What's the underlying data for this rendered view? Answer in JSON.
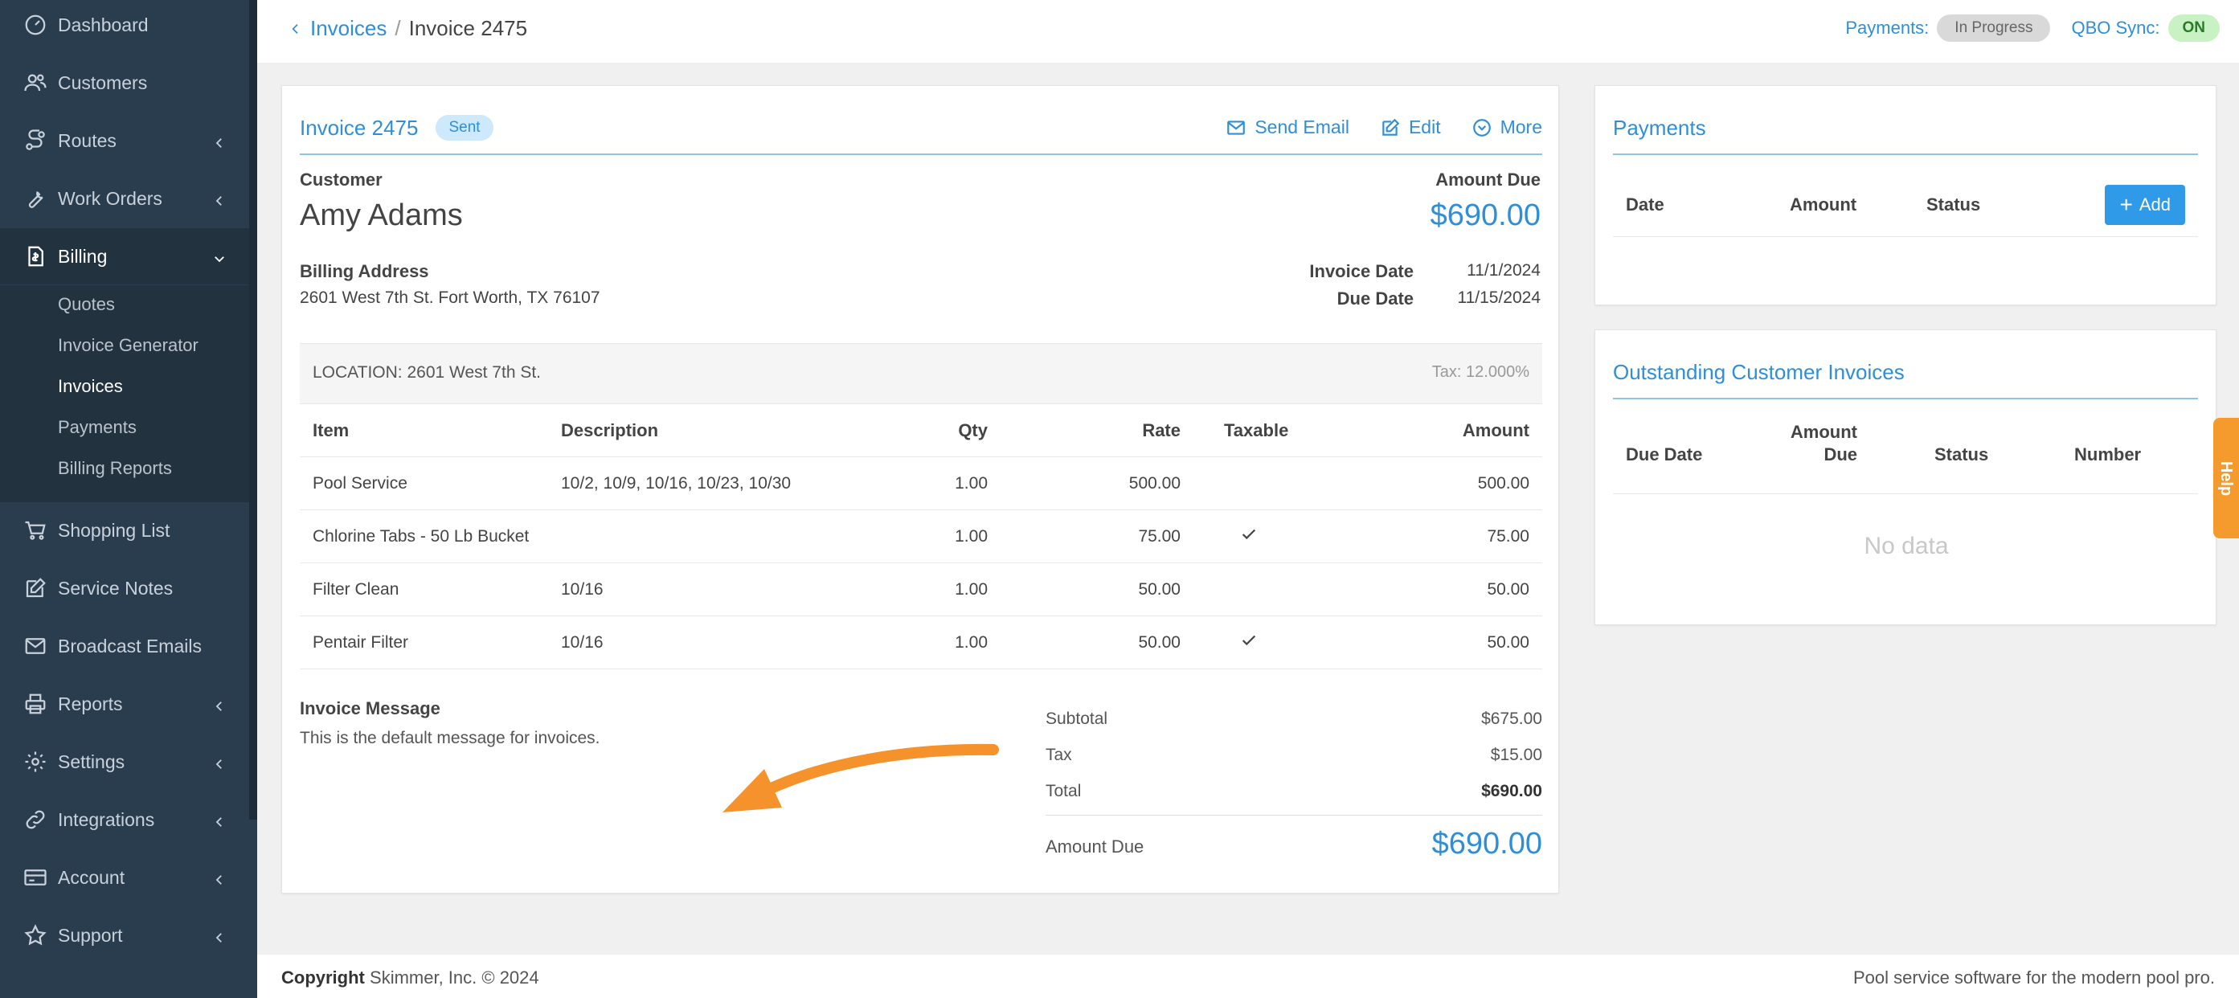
{
  "sidebar": {
    "items": [
      {
        "label": "Dashboard",
        "icon": "dashboard-icon"
      },
      {
        "label": "Customers",
        "icon": "customers-icon"
      },
      {
        "label": "Routes",
        "icon": "routes-icon"
      },
      {
        "label": "Work Orders",
        "icon": "wrench-icon"
      },
      {
        "label": "Billing",
        "icon": "billing-icon"
      },
      {
        "label": "Shopping List",
        "icon": "cart-icon"
      },
      {
        "label": "Service Notes",
        "icon": "notes-icon"
      },
      {
        "label": "Broadcast Emails",
        "icon": "email-icon"
      },
      {
        "label": "Reports",
        "icon": "printer-icon"
      },
      {
        "label": "Settings",
        "icon": "gear-icon"
      },
      {
        "label": "Integrations",
        "icon": "link-icon"
      },
      {
        "label": "Account",
        "icon": "account-card-icon"
      },
      {
        "label": "Support",
        "icon": "star-icon"
      }
    ],
    "billing_sub": [
      {
        "label": "Quotes"
      },
      {
        "label": "Invoice Generator"
      },
      {
        "label": "Invoices"
      },
      {
        "label": "Payments"
      },
      {
        "label": "Billing Reports"
      }
    ]
  },
  "topbar": {
    "breadcrumb_parent": "Invoices",
    "breadcrumb_sep": "/",
    "breadcrumb_current": "Invoice 2475",
    "payments_label": "Payments:",
    "payments_status": "In Progress",
    "qbo_label": "QBO Sync:",
    "qbo_status": "ON"
  },
  "invoice": {
    "title": "Invoice 2475",
    "status": "Sent",
    "actions": {
      "send_email": "Send Email",
      "edit": "Edit",
      "more": "More"
    },
    "customer_label": "Customer",
    "customer_name": "Amy Adams",
    "amount_due_label": "Amount Due",
    "amount_due": "$690.00",
    "billing_address_label": "Billing Address",
    "billing_address": "2601 West 7th St. Fort Worth, TX 76107",
    "invoice_date_label": "Invoice Date",
    "invoice_date": "11/1/2024",
    "due_date_label": "Due Date",
    "due_date": "11/15/2024",
    "location": "LOCATION: 2601 West 7th St.",
    "tax_rate": "Tax: 12.000%",
    "columns": {
      "item": "Item",
      "description": "Description",
      "qty": "Qty",
      "rate": "Rate",
      "taxable": "Taxable",
      "amount": "Amount"
    },
    "lines": [
      {
        "item": "Pool Service",
        "description": "10/2, 10/9, 10/16, 10/23, 10/30",
        "qty": "1.00",
        "rate": "500.00",
        "taxable": false,
        "amount": "500.00"
      },
      {
        "item": "Chlorine Tabs - 50 Lb Bucket",
        "description": "",
        "qty": "1.00",
        "rate": "75.00",
        "taxable": true,
        "amount": "75.00"
      },
      {
        "item": "Filter Clean",
        "description": "10/16",
        "qty": "1.00",
        "rate": "50.00",
        "taxable": false,
        "amount": "50.00"
      },
      {
        "item": "Pentair Filter",
        "description": "10/16",
        "qty": "1.00",
        "rate": "50.00",
        "taxable": true,
        "amount": "50.00"
      }
    ],
    "message_label": "Invoice Message",
    "message": "This is the default message for invoices.",
    "totals": {
      "subtotal_label": "Subtotal",
      "subtotal": "$675.00",
      "tax_label": "Tax",
      "tax": "$15.00",
      "total_label": "Total",
      "total": "$690.00",
      "amount_due_label": "Amount Due",
      "amount_due": "$690.00"
    }
  },
  "payments_card": {
    "title": "Payments",
    "columns": {
      "date": "Date",
      "amount": "Amount",
      "status": "Status"
    },
    "add_label": "Add"
  },
  "outstanding_card": {
    "title": "Outstanding Customer Invoices",
    "columns": {
      "due_date": "Due Date",
      "amount_due_1": "Amount",
      "amount_due_2": "Due",
      "status": "Status",
      "number": "Number"
    },
    "empty": "No data"
  },
  "help_label": "Help",
  "footer": {
    "copyright_label": "Copyright",
    "copyright_text": "Skimmer, Inc. © 2024",
    "tagline": "Pool service software for the modern pool pro."
  },
  "colors": {
    "accent": "#2e8fd8",
    "sidebar": "#2a3d4f",
    "arrow": "#f5922b",
    "help": "#f59b2e"
  }
}
